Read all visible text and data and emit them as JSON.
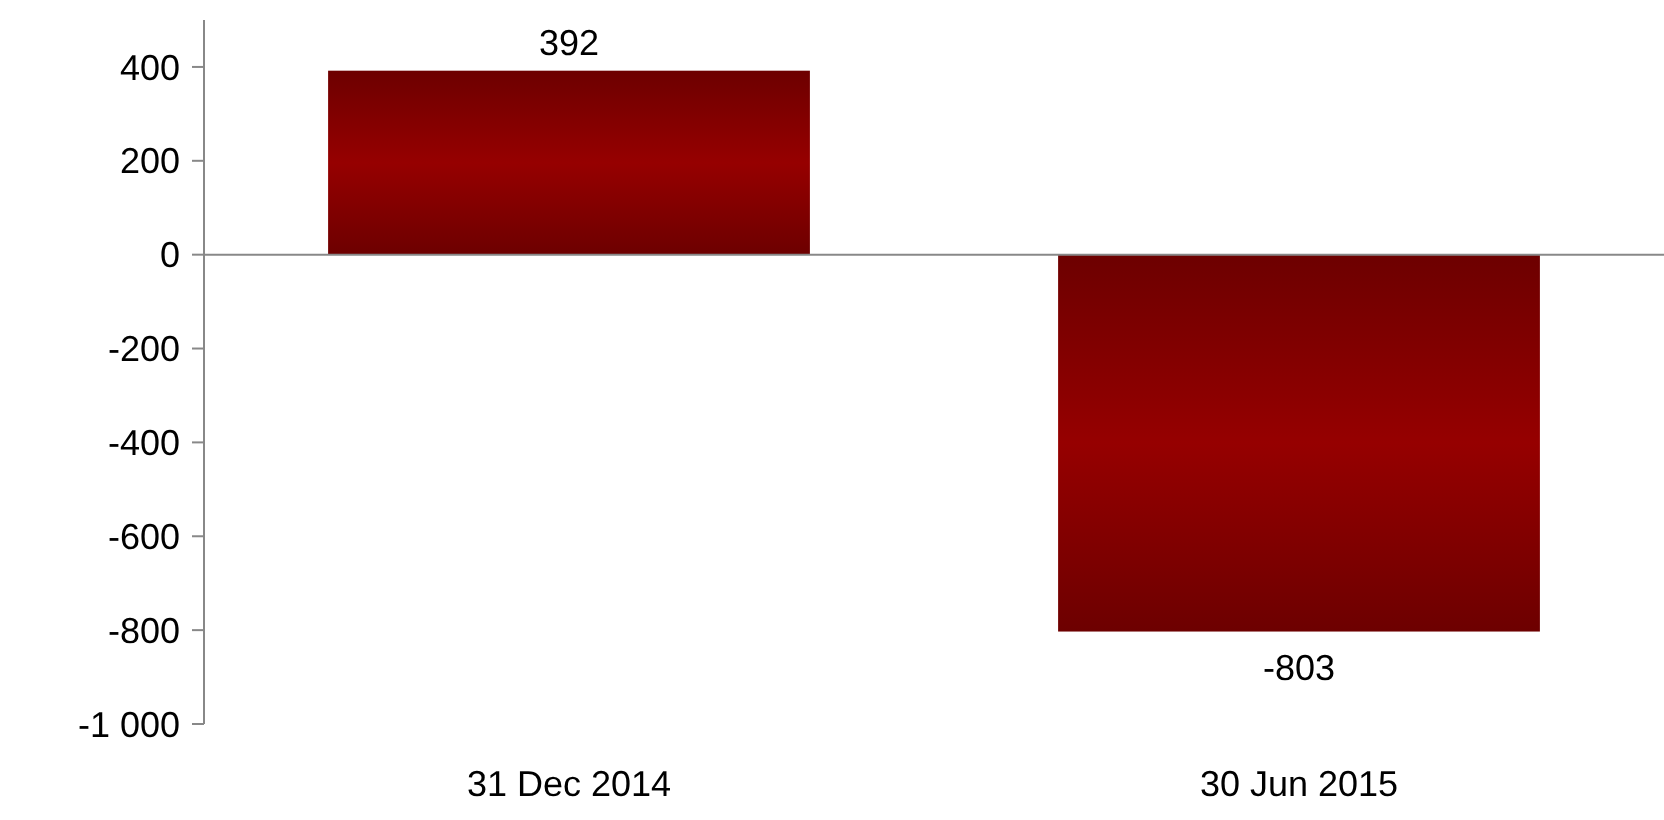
{
  "chart_data": {
    "type": "bar",
    "categories": [
      "31 Dec 2014",
      "30 Jun 2015"
    ],
    "values": [
      392,
      -803
    ],
    "color": "#960000",
    "ylim": [
      -1000,
      500
    ],
    "yticks": [
      400,
      200,
      0,
      -200,
      -400,
      -600,
      -800,
      {
        "value": -1000,
        "label": "-1 000"
      }
    ],
    "data_labels": true
  }
}
